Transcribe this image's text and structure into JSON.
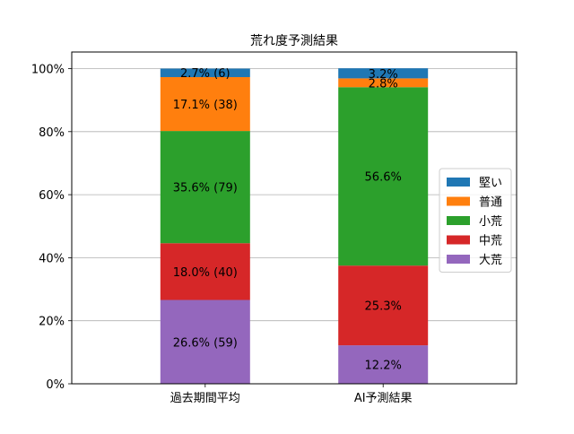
{
  "chart_data": {
    "type": "bar",
    "stacked": true,
    "orientation": "vertical",
    "title": "荒れ度予測結果",
    "xlabel": "",
    "ylabel": "",
    "ylim": [
      0,
      100
    ],
    "yticks": [
      "0%",
      "20%",
      "40%",
      "60%",
      "80%",
      "100%"
    ],
    "y_grid": true,
    "legend_placement": "center-right",
    "categories": [
      "過去期間平均",
      "AI予測結果"
    ],
    "series": [
      {
        "name": "大荒",
        "color": "#9467bd",
        "values": [
          26.6,
          12.2
        ],
        "labels": [
          "26.6% (59)",
          "12.2%"
        ]
      },
      {
        "name": "中荒",
        "color": "#d62728",
        "values": [
          18.0,
          25.3
        ],
        "labels": [
          "18.0% (40)",
          "25.3%"
        ]
      },
      {
        "name": "小荒",
        "color": "#2ca02c",
        "values": [
          35.6,
          56.6
        ],
        "labels": [
          "35.6% (79)",
          "56.6%"
        ]
      },
      {
        "name": "普通",
        "color": "#ff7f0e",
        "values": [
          17.1,
          2.8
        ],
        "labels": [
          "17.1% (38)",
          "2.8%"
        ]
      },
      {
        "name": "堅い",
        "color": "#1f77b4",
        "values": [
          2.7,
          3.2
        ],
        "labels": [
          "2.7% (6)",
          "3.2%"
        ]
      }
    ],
    "legend_order": [
      "堅い",
      "普通",
      "小荒",
      "中荒",
      "大荒"
    ]
  }
}
